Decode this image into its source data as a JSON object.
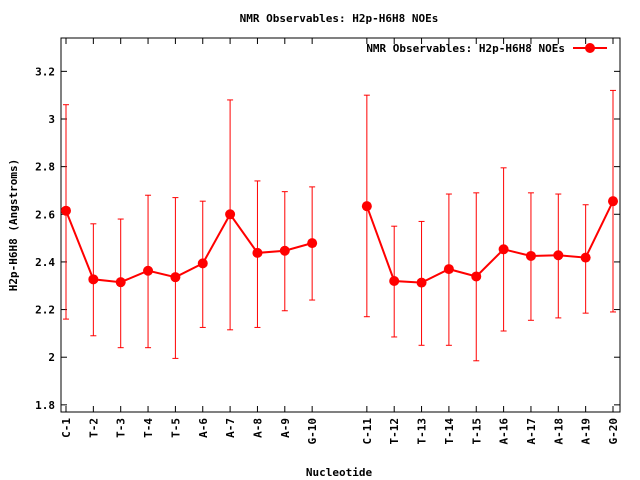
{
  "chart_data": {
    "type": "line",
    "title": "NMR Observables: H2p-H6H8 NOEs",
    "xlabel": "Nucleotide",
    "ylabel": "H2p-H6H8 (Angstroms)",
    "ylim": [
      1.77,
      3.34
    ],
    "yticks": [
      "1.8",
      "2",
      "2.2",
      "2.4",
      "2.6",
      "2.8",
      "3",
      "3.2"
    ],
    "legend_position": "top-right",
    "grid": false,
    "series_color": "#ff0000",
    "series": [
      {
        "name": "NMR Observables: H2p-H6H8 NOEs",
        "segments": [
          {
            "categories": [
              "C-1",
              "T-2",
              "T-3",
              "T-4",
              "T-5",
              "A-6",
              "A-7",
              "A-8",
              "A-9",
              "G-10"
            ],
            "values": [
              2.615,
              2.327,
              2.315,
              2.363,
              2.336,
              2.394,
              2.6,
              2.438,
              2.447,
              2.479
            ],
            "err_low": [
              2.16,
              2.09,
              2.04,
              2.04,
              1.995,
              2.125,
              2.115,
              2.125,
              2.195,
              2.24
            ],
            "err_high": [
              3.06,
              2.56,
              2.58,
              2.68,
              2.67,
              2.655,
              3.08,
              2.74,
              2.695,
              2.715
            ]
          },
          {
            "categories": [
              "C-11",
              "T-12",
              "T-13",
              "T-14",
              "T-15",
              "A-16",
              "A-17",
              "A-18",
              "A-19",
              "G-20"
            ],
            "values": [
              2.634,
              2.32,
              2.313,
              2.37,
              2.339,
              2.453,
              2.425,
              2.428,
              2.418,
              2.655
            ],
            "err_low": [
              2.17,
              2.085,
              2.05,
              2.05,
              1.985,
              2.11,
              2.155,
              2.165,
              2.185,
              2.19
            ],
            "err_high": [
              3.1,
              2.55,
              2.57,
              2.685,
              2.69,
              2.795,
              2.69,
              2.685,
              2.64,
              3.12
            ]
          }
        ]
      }
    ]
  }
}
